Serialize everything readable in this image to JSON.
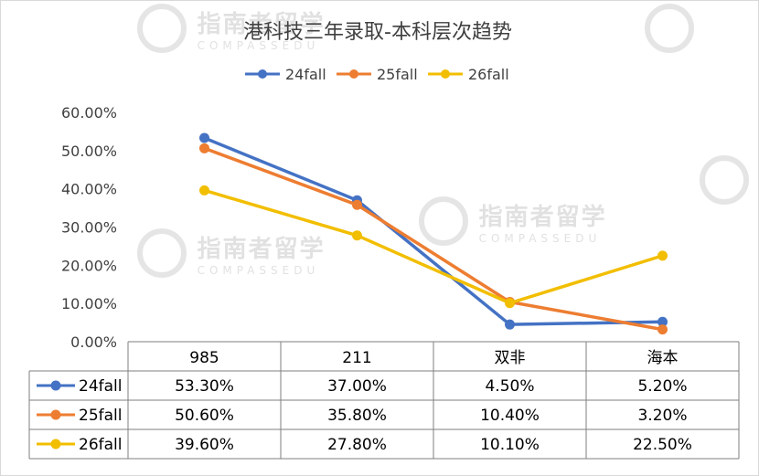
{
  "chart_data": {
    "type": "line",
    "title": "港科技三年录取-本科层次趋势",
    "categories": [
      "985",
      "211",
      "双非",
      "海本"
    ],
    "y_ticks": [
      "60.00%",
      "50.00%",
      "40.00%",
      "30.00%",
      "20.00%",
      "10.00%",
      "0.00%"
    ],
    "ylim": [
      0,
      60
    ],
    "grid": false,
    "legend_position": "top",
    "series": [
      {
        "name": "24fall",
        "color": "#4472C4",
        "values": [
          53.3,
          37.0,
          4.5,
          5.2
        ],
        "labels": [
          "53.30%",
          "37.00%",
          "4.50%",
          "5.20%"
        ]
      },
      {
        "name": "25fall",
        "color": "#ED7D31",
        "values": [
          50.6,
          35.8,
          10.4,
          3.2
        ],
        "labels": [
          "50.60%",
          "35.80%",
          "10.40%",
          "3.20%"
        ]
      },
      {
        "name": "26fall",
        "color": "#F2BE00",
        "values": [
          39.6,
          27.8,
          10.1,
          22.5
        ],
        "labels": [
          "39.60%",
          "27.80%",
          "10.10%",
          "22.50%"
        ]
      }
    ]
  },
  "watermark": {
    "brand": "指南者留学",
    "sub": "COMPASSEDU"
  }
}
